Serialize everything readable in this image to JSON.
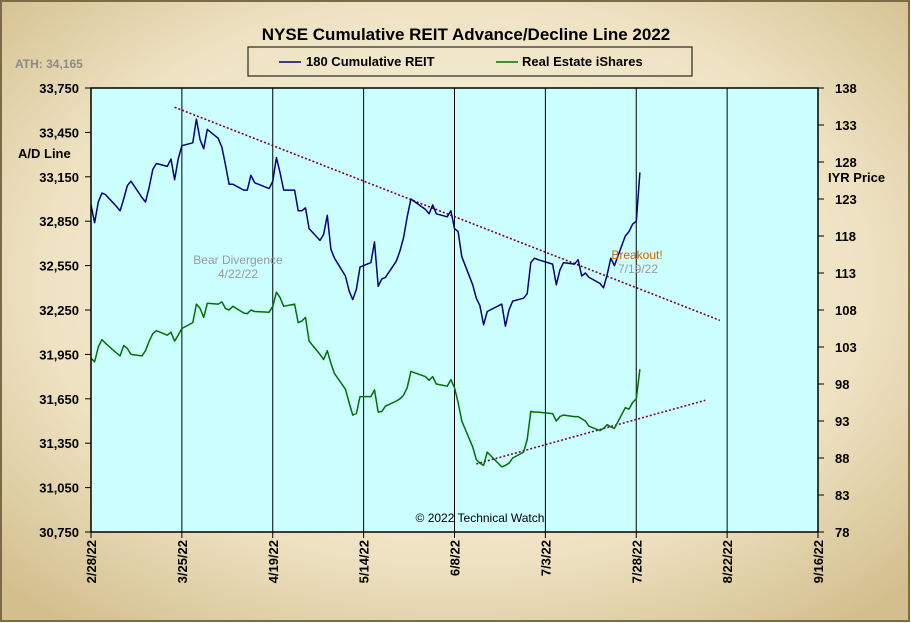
{
  "chart_data": {
    "type": "line",
    "title": "NYSE Cumulative  REIT Advance/Decline  Line 2022",
    "ath_label": "ATH: 34,165",
    "ylabel_left": "A/D Line",
    "ylabel_right": "IYR Price",
    "legend": {
      "placement": "top-center",
      "entries": [
        "180 Cumulative REIT",
        "Real Estate iShares"
      ]
    },
    "copyright": "© 2022 Technical Watch",
    "annotations": {
      "bear_divergence": {
        "text": "Bear Divergence",
        "date": "4/22/22"
      },
      "breakout": {
        "text": "Breakout!",
        "date": "7/19/22"
      }
    },
    "x_ticks": [
      "2/28/22",
      "3/25/22",
      "4/19/22",
      "5/14/22",
      "6/8/22",
      "7/3/22",
      "7/28/22",
      "8/22/22",
      "9/16/22"
    ],
    "left_ticks": [
      "33,750",
      "33,450",
      "33,150",
      "32,850",
      "32,550",
      "32,250",
      "31,950",
      "31,650",
      "31,350",
      "31,050",
      "30,750"
    ],
    "right_ticks": [
      "138",
      "133",
      "128",
      "123",
      "118",
      "113",
      "108",
      "103",
      "98",
      "93",
      "88",
      "83",
      "78"
    ],
    "xlim": [
      "2022-02-28",
      "2022-09-16"
    ],
    "ylim_left": [
      30750,
      33750
    ],
    "ylim_right": [
      78,
      138
    ],
    "grid": "vertical",
    "colors": {
      "plot_bg": "#ccffff",
      "frame_bg": "#e8dcb8",
      "ad_line": "#000080",
      "iyr_line": "#007000",
      "trend": "#800020",
      "support": "#800060",
      "breakout": "#cc6600",
      "annotation": "#999999"
    },
    "series": [
      {
        "name": "180 Cumulative REIT",
        "axis": "left",
        "points": [
          [
            "2022-02-28",
            32960
          ],
          [
            "2022-03-01",
            32840
          ],
          [
            "2022-03-02",
            32980
          ],
          [
            "2022-03-03",
            33040
          ],
          [
            "2022-03-04",
            33030
          ],
          [
            "2022-03-07",
            32950
          ],
          [
            "2022-03-08",
            32920
          ],
          [
            "2022-03-09",
            33000
          ],
          [
            "2022-03-10",
            33090
          ],
          [
            "2022-03-11",
            33120
          ],
          [
            "2022-03-14",
            33010
          ],
          [
            "2022-03-15",
            32980
          ],
          [
            "2022-03-16",
            33080
          ],
          [
            "2022-03-17",
            33200
          ],
          [
            "2022-03-18",
            33240
          ],
          [
            "2022-03-21",
            33220
          ],
          [
            "2022-03-22",
            33270
          ],
          [
            "2022-03-23",
            33130
          ],
          [
            "2022-03-24",
            33270
          ],
          [
            "2022-03-25",
            33360
          ],
          [
            "2022-03-28",
            33380
          ],
          [
            "2022-03-29",
            33540
          ],
          [
            "2022-03-30",
            33400
          ],
          [
            "2022-03-31",
            33340
          ],
          [
            "2022-04-01",
            33470
          ],
          [
            "2022-04-04",
            33410
          ],
          [
            "2022-04-05",
            33350
          ],
          [
            "2022-04-06",
            33230
          ],
          [
            "2022-04-07",
            33100
          ],
          [
            "2022-04-08",
            33100
          ],
          [
            "2022-04-11",
            33060
          ],
          [
            "2022-04-12",
            33060
          ],
          [
            "2022-04-13",
            33160
          ],
          [
            "2022-04-14",
            33110
          ],
          [
            "2022-04-18",
            33070
          ],
          [
            "2022-04-19",
            33120
          ],
          [
            "2022-04-20",
            33280
          ],
          [
            "2022-04-21",
            33180
          ],
          [
            "2022-04-22",
            33060
          ],
          [
            "2022-04-25",
            33060
          ],
          [
            "2022-04-26",
            32920
          ],
          [
            "2022-04-27",
            32920
          ],
          [
            "2022-04-28",
            32940
          ],
          [
            "2022-04-29",
            32800
          ],
          [
            "2022-05-02",
            32720
          ],
          [
            "2022-05-03",
            32760
          ],
          [
            "2022-05-04",
            32890
          ],
          [
            "2022-05-05",
            32660
          ],
          [
            "2022-05-06",
            32600
          ],
          [
            "2022-05-09",
            32480
          ],
          [
            "2022-05-10",
            32380
          ],
          [
            "2022-05-11",
            32320
          ],
          [
            "2022-05-12",
            32390
          ],
          [
            "2022-05-13",
            32540
          ],
          [
            "2022-05-16",
            32570
          ],
          [
            "2022-05-17",
            32710
          ],
          [
            "2022-05-18",
            32410
          ],
          [
            "2022-05-19",
            32460
          ],
          [
            "2022-05-20",
            32470
          ],
          [
            "2022-05-23",
            32580
          ],
          [
            "2022-05-24",
            32650
          ],
          [
            "2022-05-25",
            32740
          ],
          [
            "2022-05-26",
            32880
          ],
          [
            "2022-05-27",
            33000
          ],
          [
            "2022-05-31",
            32930
          ],
          [
            "2022-06-01",
            32900
          ],
          [
            "2022-06-02",
            32960
          ],
          [
            "2022-06-03",
            32900
          ],
          [
            "2022-06-06",
            32880
          ],
          [
            "2022-06-07",
            32920
          ],
          [
            "2022-06-08",
            32800
          ],
          [
            "2022-06-09",
            32780
          ],
          [
            "2022-06-10",
            32610
          ],
          [
            "2022-06-13",
            32420
          ],
          [
            "2022-06-14",
            32330
          ],
          [
            "2022-06-15",
            32280
          ],
          [
            "2022-06-16",
            32150
          ],
          [
            "2022-06-17",
            32240
          ],
          [
            "2022-06-21",
            32290
          ],
          [
            "2022-06-22",
            32140
          ],
          [
            "2022-06-23",
            32250
          ],
          [
            "2022-06-24",
            32310
          ],
          [
            "2022-06-27",
            32330
          ],
          [
            "2022-06-28",
            32360
          ],
          [
            "2022-06-29",
            32570
          ],
          [
            "2022-06-30",
            32600
          ],
          [
            "2022-07-01",
            32590
          ],
          [
            "2022-07-05",
            32560
          ],
          [
            "2022-07-06",
            32420
          ],
          [
            "2022-07-07",
            32520
          ],
          [
            "2022-07-08",
            32570
          ],
          [
            "2022-07-11",
            32560
          ],
          [
            "2022-07-12",
            32590
          ],
          [
            "2022-07-13",
            32480
          ],
          [
            "2022-07-14",
            32500
          ],
          [
            "2022-07-15",
            32470
          ],
          [
            "2022-07-18",
            32430
          ],
          [
            "2022-07-19",
            32400
          ],
          [
            "2022-07-20",
            32490
          ],
          [
            "2022-07-21",
            32600
          ],
          [
            "2022-07-22",
            32550
          ],
          [
            "2022-07-25",
            32750
          ],
          [
            "2022-07-26",
            32780
          ],
          [
            "2022-07-27",
            32830
          ],
          [
            "2022-07-28",
            32850
          ],
          [
            "2022-07-29",
            33180
          ]
        ]
      },
      {
        "name": "Real Estate iShares",
        "axis": "right",
        "points": [
          [
            "2022-02-28",
            101.5
          ],
          [
            "2022-03-01",
            101.0
          ],
          [
            "2022-03-02",
            103.0
          ],
          [
            "2022-03-03",
            104.0
          ],
          [
            "2022-03-04",
            103.5
          ],
          [
            "2022-03-07",
            102.2
          ],
          [
            "2022-03-08",
            101.8
          ],
          [
            "2022-03-09",
            103.2
          ],
          [
            "2022-03-10",
            102.8
          ],
          [
            "2022-03-11",
            102.0
          ],
          [
            "2022-03-14",
            101.8
          ],
          [
            "2022-03-15",
            102.5
          ],
          [
            "2022-03-16",
            103.8
          ],
          [
            "2022-03-17",
            104.8
          ],
          [
            "2022-03-18",
            105.2
          ],
          [
            "2022-03-21",
            104.6
          ],
          [
            "2022-03-22",
            105.0
          ],
          [
            "2022-03-23",
            103.8
          ],
          [
            "2022-03-24",
            104.6
          ],
          [
            "2022-03-25",
            105.5
          ],
          [
            "2022-03-28",
            106.3
          ],
          [
            "2022-03-29",
            108.8
          ],
          [
            "2022-03-30",
            108.2
          ],
          [
            "2022-03-31",
            107.0
          ],
          [
            "2022-04-01",
            108.9
          ],
          [
            "2022-04-04",
            108.8
          ],
          [
            "2022-04-05",
            109.1
          ],
          [
            "2022-04-06",
            108.2
          ],
          [
            "2022-04-07",
            108.0
          ],
          [
            "2022-04-08",
            108.5
          ],
          [
            "2022-04-11",
            107.6
          ],
          [
            "2022-04-12",
            107.5
          ],
          [
            "2022-04-13",
            108.0
          ],
          [
            "2022-04-14",
            107.8
          ],
          [
            "2022-04-18",
            107.7
          ],
          [
            "2022-04-19",
            108.5
          ],
          [
            "2022-04-20",
            110.4
          ],
          [
            "2022-04-21",
            109.7
          ],
          [
            "2022-04-22",
            108.5
          ],
          [
            "2022-04-25",
            108.8
          ],
          [
            "2022-04-26",
            106.3
          ],
          [
            "2022-04-27",
            106.5
          ],
          [
            "2022-04-28",
            107.0
          ],
          [
            "2022-04-29",
            103.8
          ],
          [
            "2022-05-02",
            102.0
          ],
          [
            "2022-05-03",
            101.3
          ],
          [
            "2022-05-04",
            102.5
          ],
          [
            "2022-05-05",
            100.8
          ],
          [
            "2022-05-06",
            99.4
          ],
          [
            "2022-05-09",
            97.3
          ],
          [
            "2022-05-10",
            95.5
          ],
          [
            "2022-05-11",
            93.8
          ],
          [
            "2022-05-12",
            94.0
          ],
          [
            "2022-05-13",
            96.3
          ],
          [
            "2022-05-16",
            96.3
          ],
          [
            "2022-05-17",
            97.2
          ],
          [
            "2022-05-18",
            94.2
          ],
          [
            "2022-05-19",
            94.3
          ],
          [
            "2022-05-20",
            95.0
          ],
          [
            "2022-05-23",
            95.7
          ],
          [
            "2022-05-24",
            96.0
          ],
          [
            "2022-05-25",
            96.5
          ],
          [
            "2022-05-26",
            97.5
          ],
          [
            "2022-05-27",
            99.7
          ],
          [
            "2022-05-31",
            99.0
          ],
          [
            "2022-06-01",
            98.5
          ],
          [
            "2022-06-02",
            99.0
          ],
          [
            "2022-06-03",
            98.0
          ],
          [
            "2022-06-06",
            97.7
          ],
          [
            "2022-06-07",
            98.6
          ],
          [
            "2022-06-08",
            97.5
          ],
          [
            "2022-06-09",
            95.5
          ],
          [
            "2022-06-10",
            93.0
          ],
          [
            "2022-06-13",
            89.5
          ],
          [
            "2022-06-14",
            87.8
          ],
          [
            "2022-06-15",
            87.3
          ],
          [
            "2022-06-16",
            87.0
          ],
          [
            "2022-06-17",
            88.8
          ],
          [
            "2022-06-21",
            86.8
          ],
          [
            "2022-06-22",
            87.0
          ],
          [
            "2022-06-23",
            87.3
          ],
          [
            "2022-06-24",
            88.0
          ],
          [
            "2022-06-27",
            88.8
          ],
          [
            "2022-06-28",
            90.5
          ],
          [
            "2022-06-29",
            94.3
          ],
          [
            "2022-06-30",
            94.2
          ],
          [
            "2022-07-01",
            94.2
          ],
          [
            "2022-07-05",
            94.0
          ],
          [
            "2022-07-06",
            93.0
          ],
          [
            "2022-07-07",
            93.6
          ],
          [
            "2022-07-08",
            93.8
          ],
          [
            "2022-07-11",
            93.6
          ],
          [
            "2022-07-12",
            93.6
          ],
          [
            "2022-07-13",
            93.3
          ],
          [
            "2022-07-14",
            93.0
          ],
          [
            "2022-07-15",
            92.3
          ],
          [
            "2022-07-18",
            91.7
          ],
          [
            "2022-07-19",
            92.0
          ],
          [
            "2022-07-20",
            92.5
          ],
          [
            "2022-07-21",
            92.2
          ],
          [
            "2022-07-22",
            92.0
          ],
          [
            "2022-07-25",
            94.8
          ],
          [
            "2022-07-26",
            94.6
          ],
          [
            "2022-07-27",
            95.5
          ],
          [
            "2022-07-28",
            96.0
          ],
          [
            "2022-07-29",
            100.0
          ]
        ]
      }
    ],
    "trendlines": [
      {
        "id": "resistance",
        "from": [
          "2022-03-23",
          33620
        ],
        "to": [
          "2022-08-20",
          32180
        ]
      },
      {
        "id": "support",
        "from": [
          "2022-06-14",
          31210
        ],
        "to": [
          "2022-08-16",
          31640
        ]
      }
    ]
  }
}
